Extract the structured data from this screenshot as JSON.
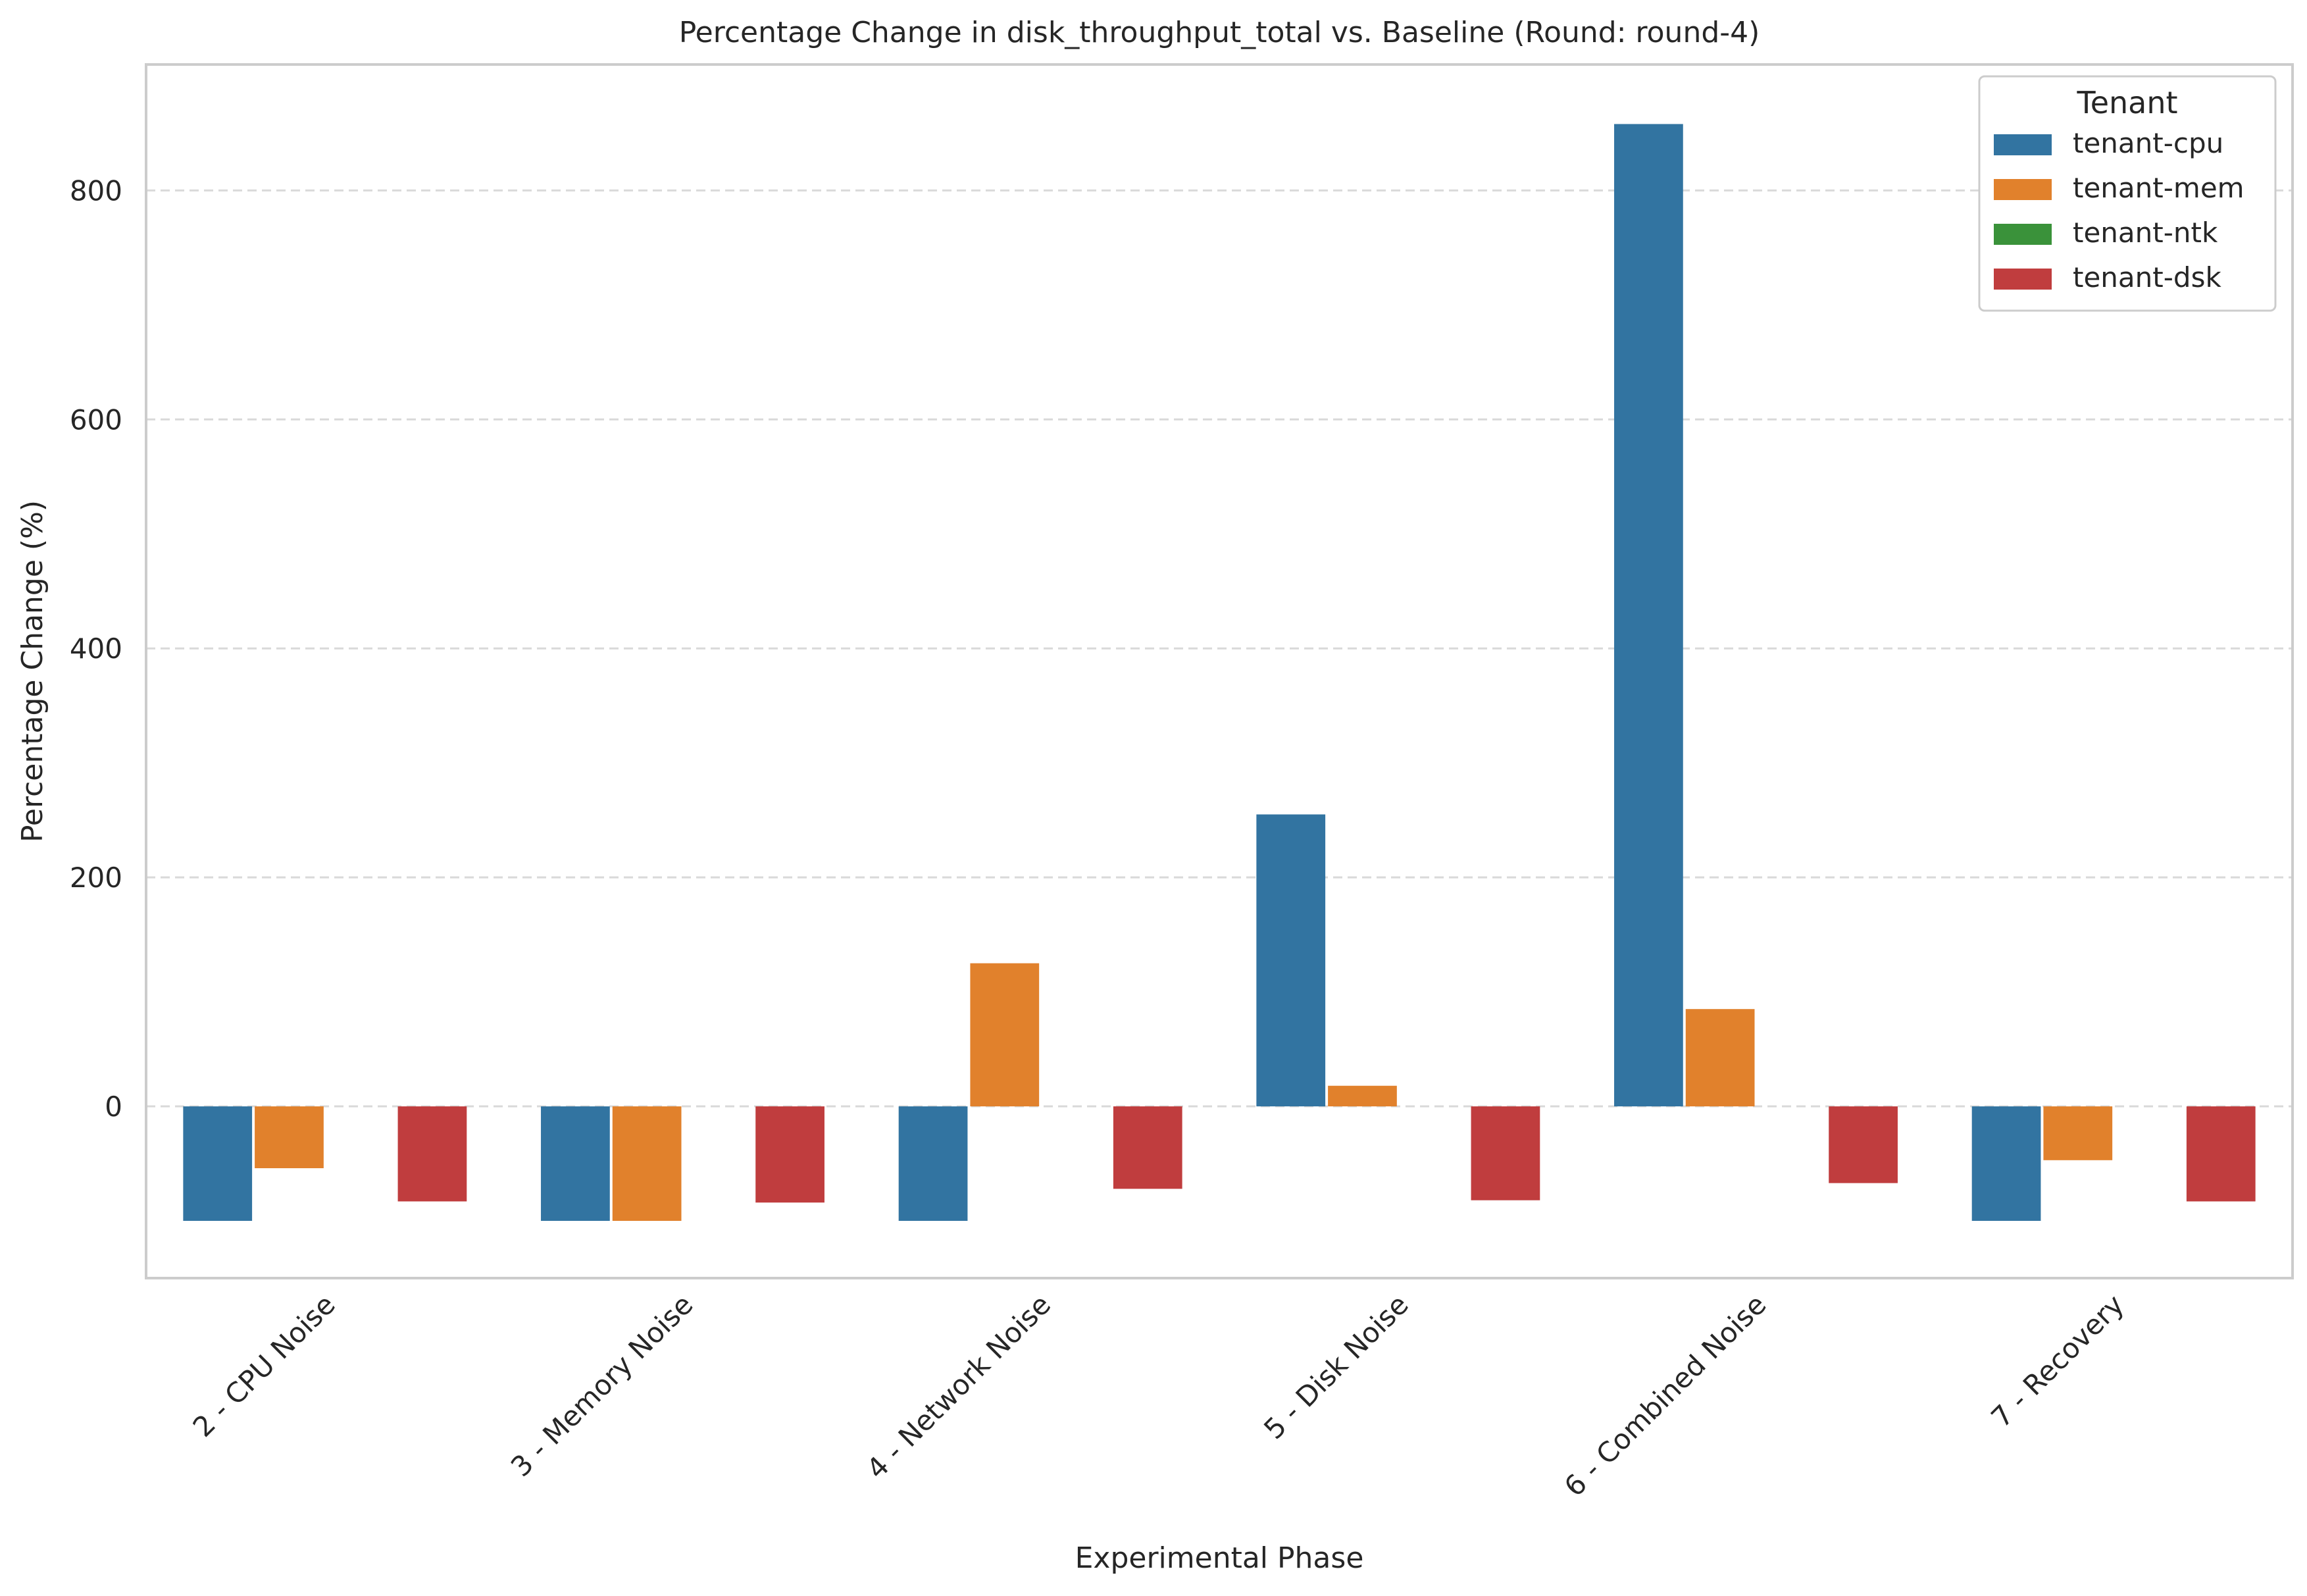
{
  "chart_data": {
    "type": "bar",
    "title": "Percentage Change in disk_throughput_total vs. Baseline (Round: round-4)",
    "xlabel": "Experimental Phase",
    "ylabel": "Percentage Change (%)",
    "categories": [
      "2 - CPU Noise",
      "3 - Memory Noise",
      "4 - Network Noise",
      "5 - Disk Noise",
      "6 - Combined Noise",
      "7 - Recovery"
    ],
    "series": [
      {
        "name": "tenant-cpu",
        "color": "#3274a1",
        "values": [
          -100,
          -100,
          -100,
          255,
          858,
          -100
        ]
      },
      {
        "name": "tenant-mem",
        "color": "#e1812c",
        "values": [
          -54,
          -100,
          125,
          18,
          85,
          -47
        ]
      },
      {
        "name": "tenant-ntk",
        "color": "#3a923a",
        "values": [
          0,
          0,
          0,
          0,
          0,
          0
        ]
      },
      {
        "name": "tenant-dsk",
        "color": "#c03d3e",
        "values": [
          -83,
          -84,
          -72,
          -82,
          -67,
          -83
        ]
      }
    ],
    "ylim": [
      -150,
      910
    ],
    "yticks": [
      0,
      200,
      400,
      600,
      800
    ],
    "grid": "horizontal dashed",
    "legend": {
      "title": "Tenant",
      "position": "top-right"
    }
  }
}
